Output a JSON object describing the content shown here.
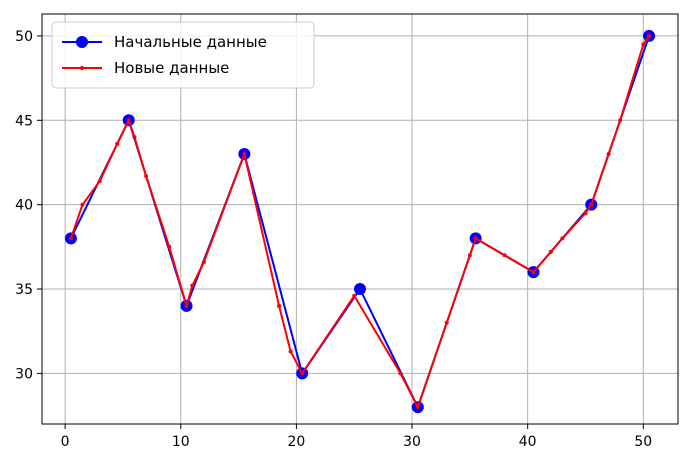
{
  "chart_data": {
    "type": "line",
    "title": "",
    "xlabel": "",
    "ylabel": "",
    "xlim": [
      -2.0,
      53.0
    ],
    "ylim": [
      27.0,
      51.3
    ],
    "x_ticks": [
      0,
      10,
      20,
      30,
      40,
      50
    ],
    "y_ticks": [
      30,
      35,
      40,
      45,
      50
    ],
    "grid": true,
    "legend_position": "upper-left",
    "series": [
      {
        "name": "Начальные данные",
        "color": "#0000ff",
        "marker": "circle",
        "x": [
          0.5,
          5.5,
          10.5,
          15.5,
          20.5,
          25.5,
          30.5,
          35.5,
          40.5,
          45.5,
          50.5
        ],
        "y": [
          38,
          45,
          34,
          43,
          30,
          35,
          28,
          38,
          36,
          40,
          50
        ]
      },
      {
        "name": "Новые данные",
        "color": "#ff0000",
        "marker": "dot",
        "x": [
          0.5,
          1.5,
          3.0,
          4.5,
          5.5,
          6.0,
          7.0,
          9.0,
          10.5,
          11.0,
          12.0,
          15.5,
          18.5,
          19.5,
          20.5,
          25.0,
          29.0,
          30.5,
          33.0,
          35.0,
          35.5,
          38.0,
          40.5,
          42.0,
          43.0,
          45.0,
          45.5,
          47.0,
          48.0,
          50.0,
          50.5
        ],
        "y": [
          38.0,
          40.0,
          41.4,
          43.6,
          45.0,
          44.0,
          41.7,
          37.5,
          34.0,
          35.2,
          36.6,
          43.0,
          34.0,
          31.3,
          30.0,
          34.6,
          30.0,
          28.0,
          33.0,
          37.0,
          38.0,
          37.0,
          36.0,
          37.2,
          38.0,
          39.5,
          40.0,
          43.0,
          45.0,
          49.5,
          50.0
        ]
      }
    ]
  }
}
